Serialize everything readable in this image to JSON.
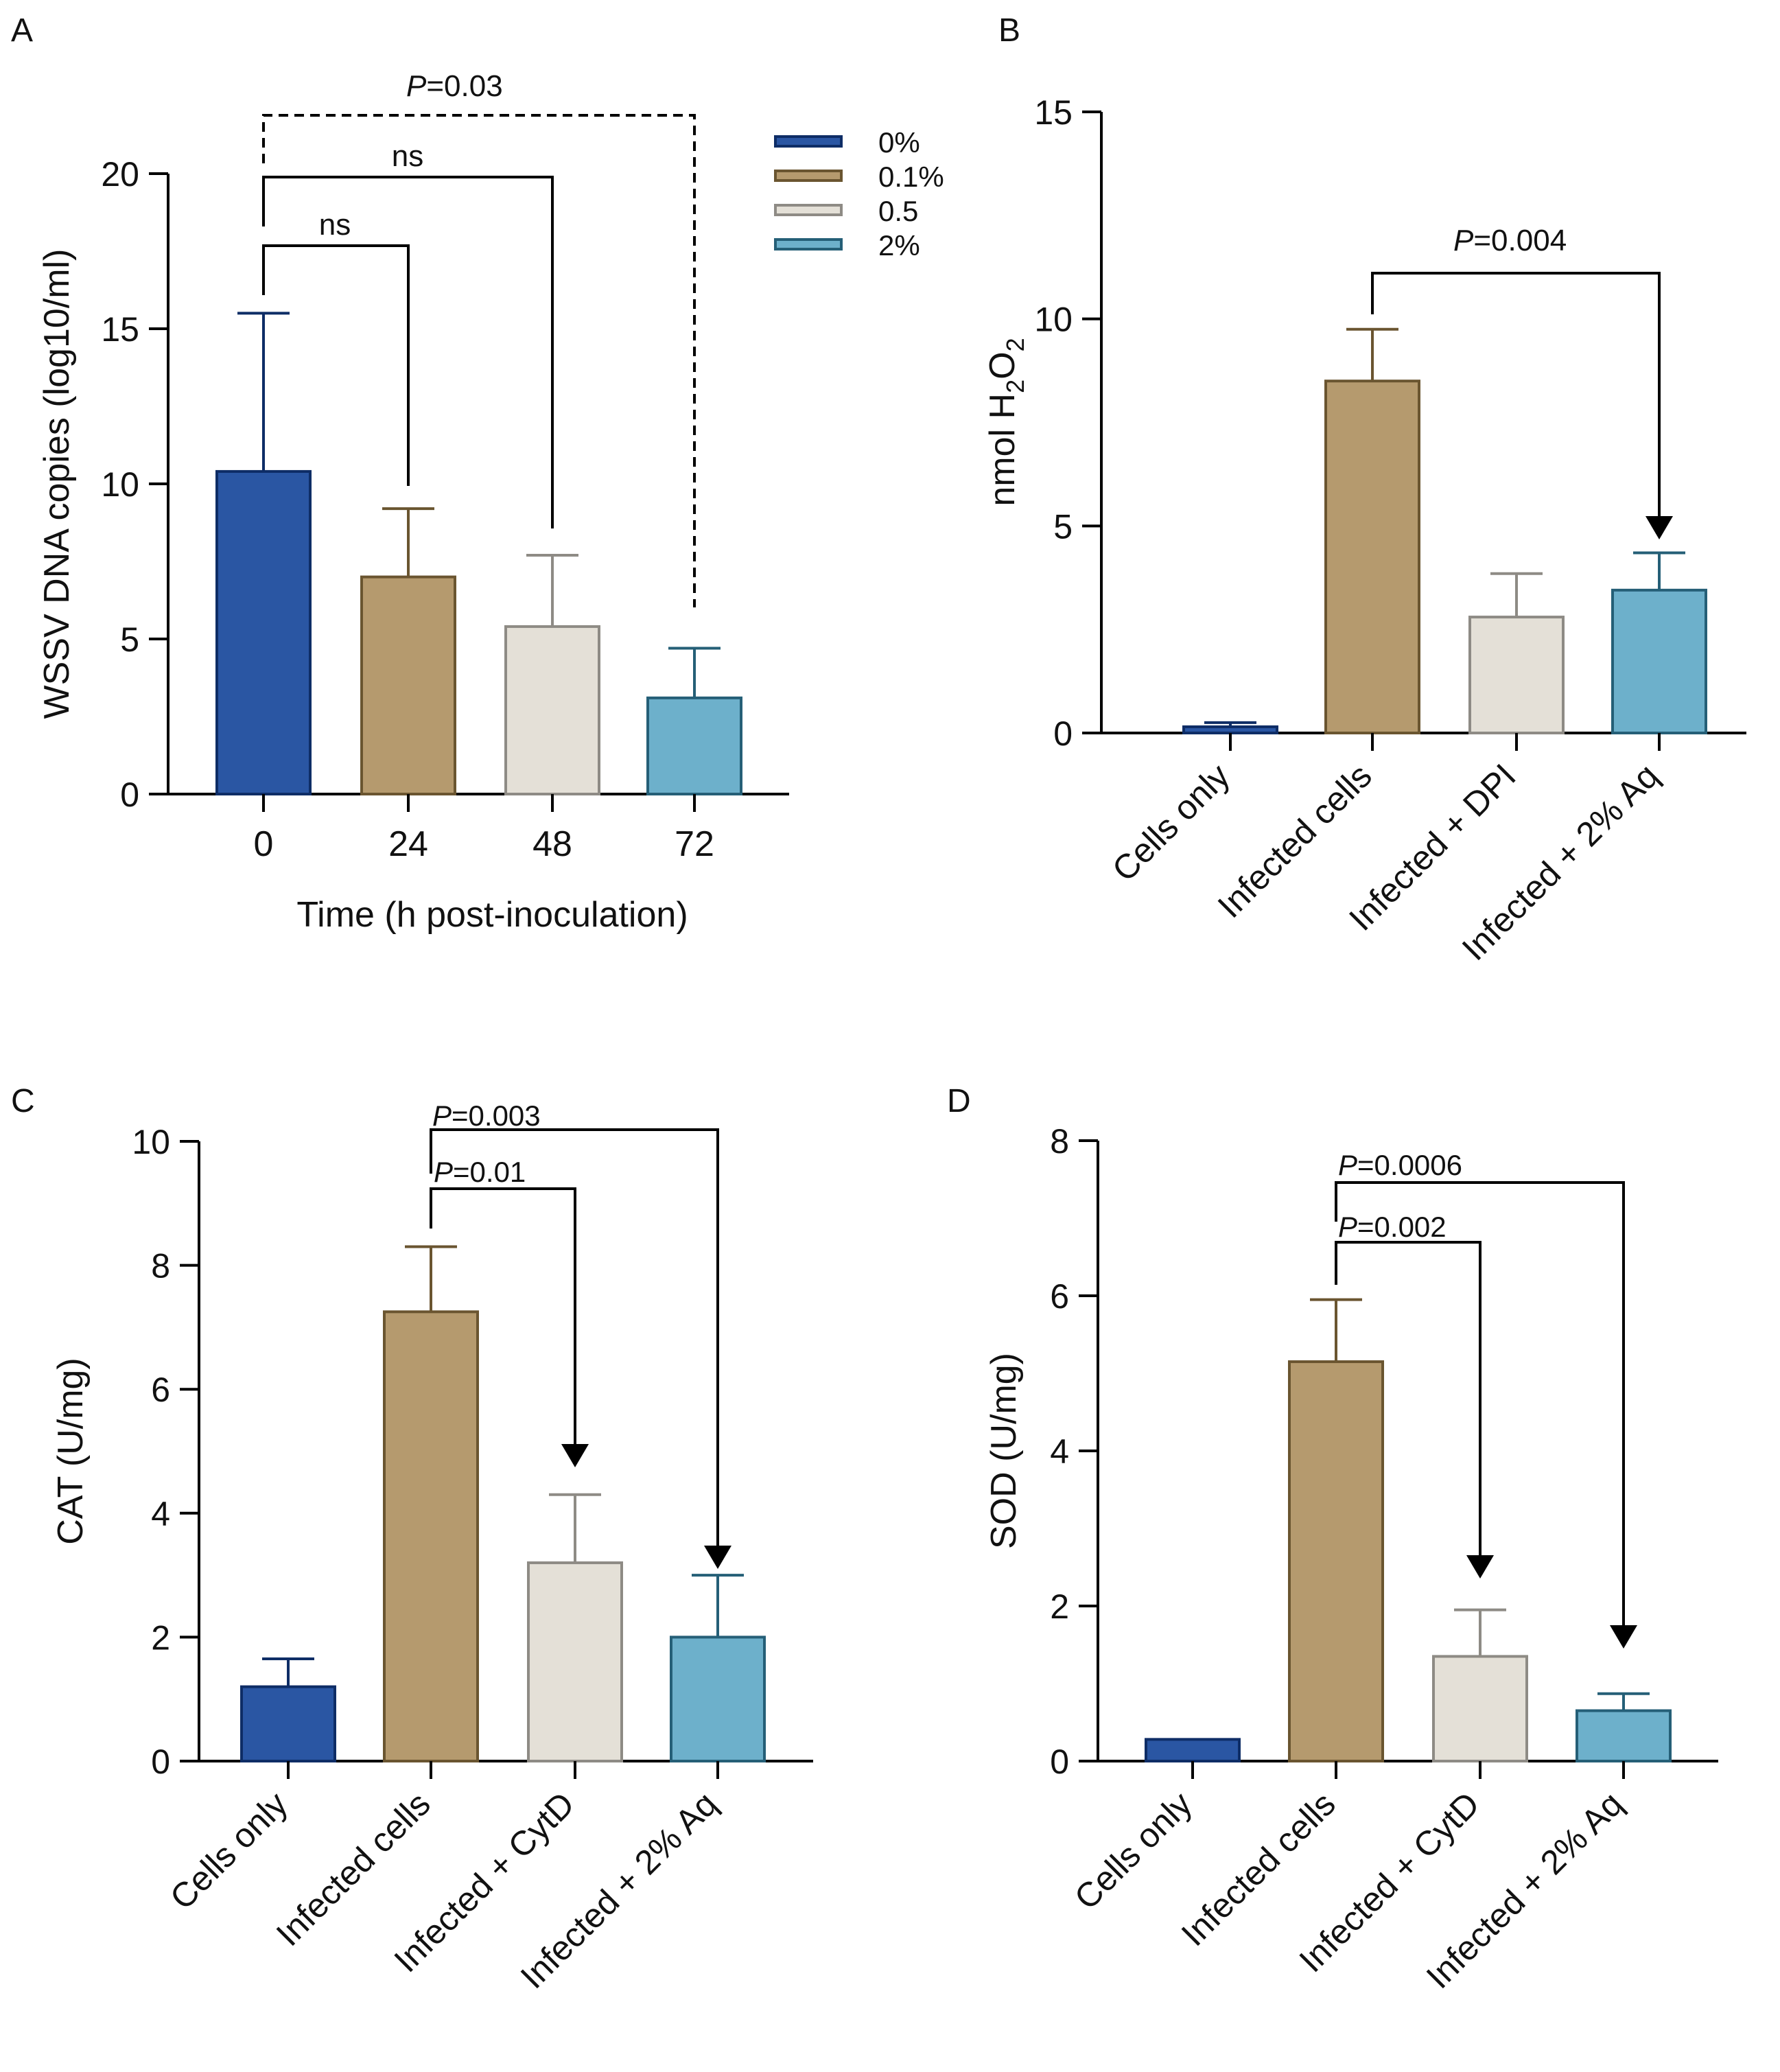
{
  "chart_data": [
    {
      "panel": "A",
      "type": "bar",
      "categories": [
        "0",
        "24",
        "48",
        "72"
      ],
      "values": [
        10.4,
        7.0,
        5.4,
        3.1
      ],
      "errors": [
        5.1,
        2.2,
        2.3,
        1.6
      ],
      "xlabel": "Time (h post-inoculation)",
      "ylabel": "WSSV DNA copies (log10/ml)",
      "ylim": [
        0,
        20
      ],
      "yticks": [
        "0",
        "5",
        "10",
        "15",
        "20"
      ],
      "legend_position": "top-right",
      "legend": [
        "0%",
        "0.1%",
        "0.5",
        "2%"
      ],
      "annotations": [
        {
          "label": "ns",
          "from": 0,
          "to": 1,
          "style": "solid"
        },
        {
          "label": "ns",
          "from": 0,
          "to": 2,
          "style": "solid"
        },
        {
          "label_prefix": "P",
          "label_value": "=0.03",
          "from": 0,
          "to": 3,
          "style": "dashed"
        }
      ]
    },
    {
      "panel": "B",
      "type": "bar",
      "categories": [
        "Cells only",
        "Infected cells",
        "Infected + DPI",
        "Infected + 2% Aq"
      ],
      "values": [
        0.15,
        8.5,
        2.8,
        3.45
      ],
      "errors": [
        0.1,
        1.25,
        1.05,
        0.9
      ],
      "ylabel_main": "nmol H",
      "ylabel_sub1": "2",
      "ylabel_mid": "O",
      "ylabel_sub2": "2",
      "ylim": [
        0,
        15
      ],
      "yticks": [
        "0",
        "5",
        "10",
        "15"
      ],
      "annotations": [
        {
          "label_prefix": "P",
          "label_value": "=0.004",
          "from": 1,
          "to": 3
        }
      ]
    },
    {
      "panel": "C",
      "type": "bar",
      "categories": [
        "Cells only",
        "Infected cells",
        "Infected + CytD",
        "Infected + 2% Aq"
      ],
      "values": [
        1.2,
        7.25,
        3.2,
        2.0
      ],
      "errors": [
        0.45,
        1.05,
        1.1,
        1.0
      ],
      "ylabel": "CAT (U/mg)",
      "ylim": [
        0,
        10
      ],
      "yticks": [
        "0",
        "2",
        "4",
        "6",
        "8",
        "10"
      ],
      "annotations": [
        {
          "label_prefix": "P",
          "label_value": "=0.01",
          "from": 1,
          "to": 2
        },
        {
          "label_prefix": "P",
          "label_value": "=0.003",
          "from": 1,
          "to": 3
        }
      ]
    },
    {
      "panel": "D",
      "type": "bar",
      "categories": [
        "Cells only",
        "Infected cells",
        "Infected + CytD",
        "Infected + 2% Aq"
      ],
      "values": [
        0.28,
        5.15,
        1.35,
        0.65
      ],
      "errors": [
        0.0,
        0.8,
        0.6,
        0.22
      ],
      "ylabel": "SOD (U/mg)",
      "ylim": [
        0,
        8
      ],
      "yticks": [
        "0",
        "2",
        "4",
        "6",
        "8"
      ],
      "annotations": [
        {
          "label_prefix": "P",
          "label_value": "=0.002",
          "from": 1,
          "to": 2
        },
        {
          "label_prefix": "P",
          "label_value": "=0.0006",
          "from": 1,
          "to": 3
        }
      ]
    }
  ],
  "colors": {
    "fills": [
      "#2a56a3",
      "#b59a6e",
      "#e4e0d7",
      "#6db0cb"
    ],
    "strokes": [
      "#0e2d66",
      "#6a5530",
      "#8e8b85",
      "#255f77"
    ]
  }
}
